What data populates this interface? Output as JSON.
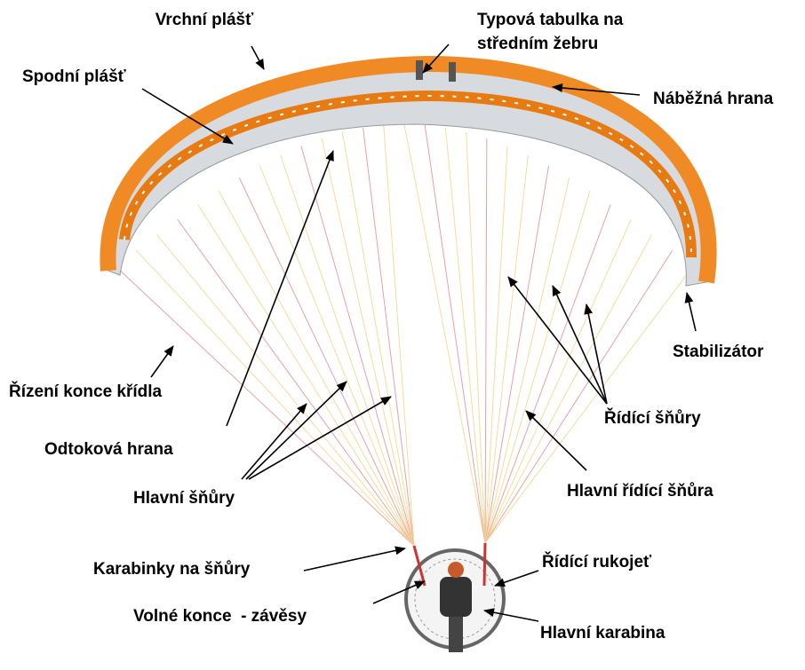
{
  "labels": {
    "top_surface": "Vrchní plášť",
    "type_plate": [
      "Typová tabulka na",
      "středním žebru"
    ],
    "bottom_surface": "Spodní plášť",
    "leading_edge": "Náběžná hrana",
    "stabilizer": "Stabilizátor",
    "wingtip_steering": "Řízení konce křídla",
    "brake_lines": "Řídící šňůry",
    "trailing_edge": "Odtoková hrana",
    "main_brake_line": "Hlavní řídící šňůra",
    "main_lines": "Hlavní šňůry",
    "line_carabiners": "Karabinky na šňůry",
    "brake_handle": "Řídící rukojeť",
    "risers": "Volné konce  - závěsy",
    "main_carabiner": "Hlavní karabina"
  }
}
